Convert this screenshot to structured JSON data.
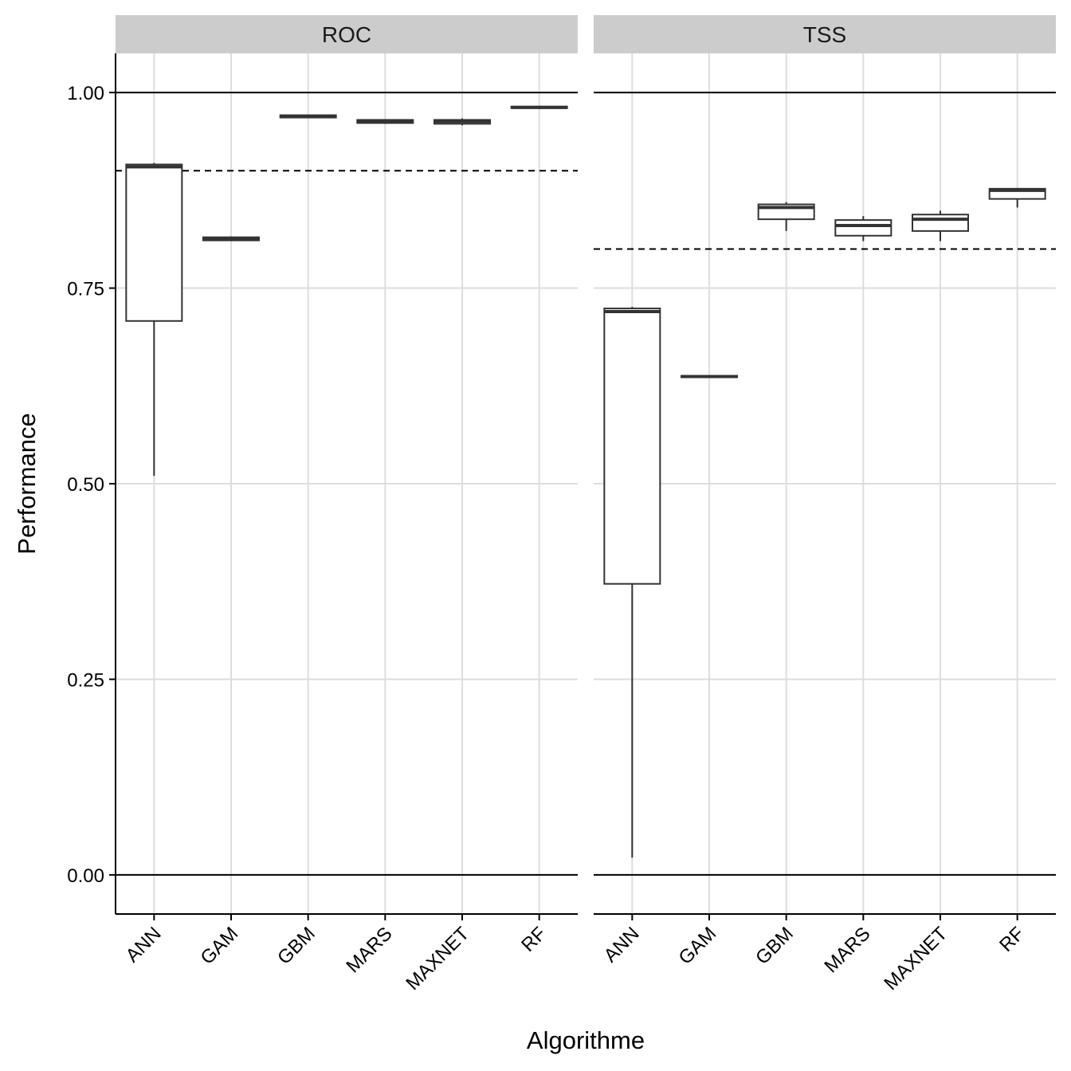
{
  "chart_data": {
    "type": "boxplot",
    "xlabel": "Algorithme",
    "ylabel": "Performance",
    "ylim": [
      -0.05,
      1.05
    ],
    "yticks": [
      0.0,
      0.25,
      0.5,
      0.75,
      1.0
    ],
    "ytick_labels": [
      "0.00",
      "0.25",
      "0.50",
      "0.75",
      "1.00"
    ],
    "categories": [
      "ANN",
      "GAM",
      "GBM",
      "MARS",
      "MAXNET",
      "RF"
    ],
    "grid": true,
    "legend": "none",
    "colors": {
      "box": "#333333",
      "grid": "#dddddd",
      "strip": "#cccccc",
      "axis": "#000000"
    },
    "facets": [
      {
        "name": "ROC",
        "threshold": 0.9,
        "boxes": [
          {
            "category": "ANN",
            "min": 0.51,
            "q1": 0.708,
            "median": 0.905,
            "q3": 0.908,
            "max": 0.91
          },
          {
            "category": "GAM",
            "min": 0.81,
            "q1": 0.811,
            "median": 0.813,
            "q3": 0.815,
            "max": 0.816
          },
          {
            "category": "GBM",
            "min": 0.967,
            "q1": 0.968,
            "median": 0.969,
            "q3": 0.971,
            "max": 0.972
          },
          {
            "category": "MARS",
            "min": 0.96,
            "q1": 0.961,
            "median": 0.963,
            "q3": 0.965,
            "max": 0.966
          },
          {
            "category": "MAXNET",
            "min": 0.958,
            "q1": 0.96,
            "median": 0.963,
            "q3": 0.965,
            "max": 0.967
          },
          {
            "category": "RF",
            "min": 0.979,
            "q1": 0.98,
            "median": 0.981,
            "q3": 0.982,
            "max": 0.983
          }
        ]
      },
      {
        "name": "TSS",
        "threshold": 0.8,
        "boxes": [
          {
            "category": "ANN",
            "min": 0.022,
            "q1": 0.372,
            "median": 0.72,
            "q3": 0.724,
            "max": 0.726
          },
          {
            "category": "GAM",
            "min": 0.636,
            "q1": 0.636,
            "median": 0.637,
            "q3": 0.638,
            "max": 0.638
          },
          {
            "category": "GBM",
            "min": 0.823,
            "q1": 0.838,
            "median": 0.853,
            "q3": 0.857,
            "max": 0.86
          },
          {
            "category": "MARS",
            "min": 0.81,
            "q1": 0.817,
            "median": 0.83,
            "q3": 0.837,
            "max": 0.842
          },
          {
            "category": "MAXNET",
            "min": 0.81,
            "q1": 0.823,
            "median": 0.838,
            "q3": 0.844,
            "max": 0.849
          },
          {
            "category": "RF",
            "min": 0.853,
            "q1": 0.864,
            "median": 0.875,
            "q3": 0.877,
            "max": 0.878
          }
        ]
      }
    ]
  }
}
